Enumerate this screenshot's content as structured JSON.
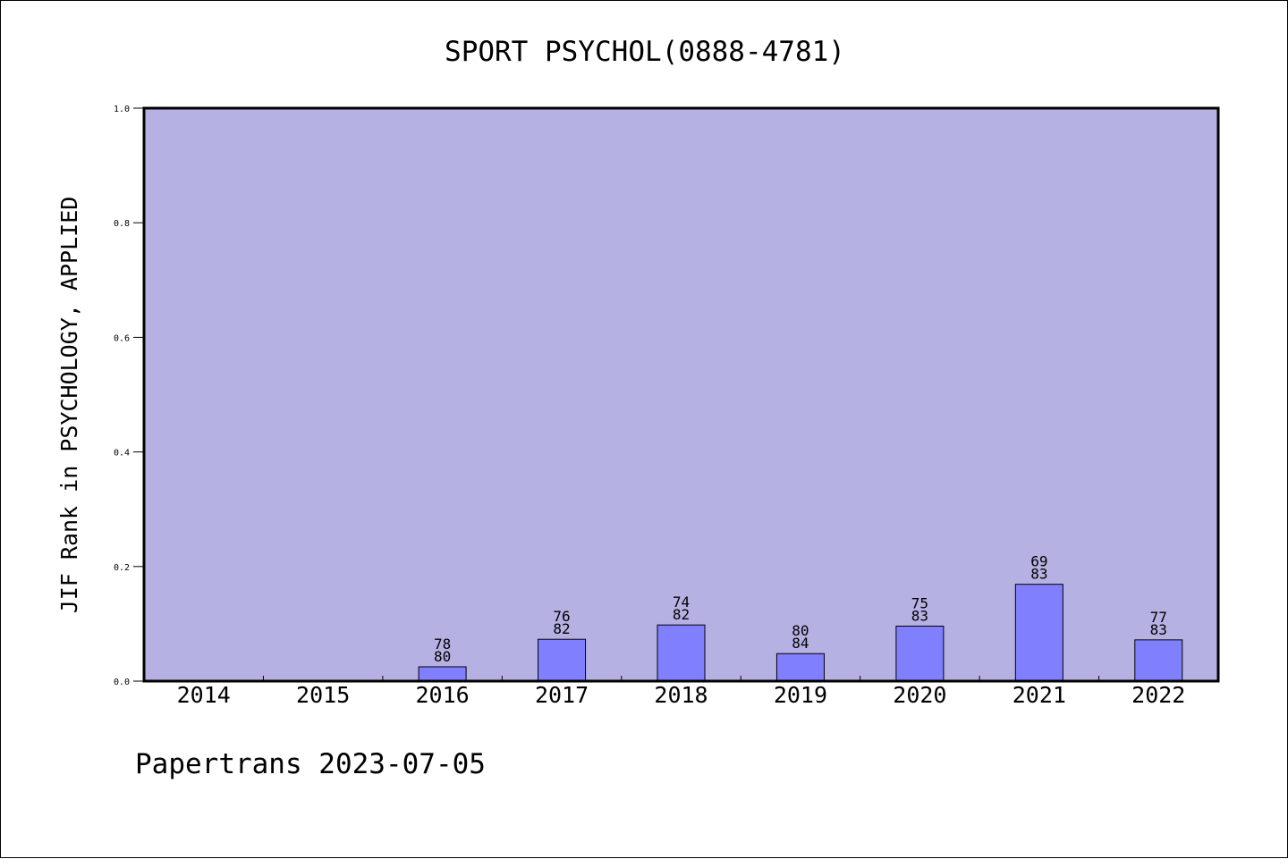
{
  "chart_data": {
    "type": "bar",
    "title": "SPORT PSYCHOL(0888-4781)",
    "xlabel": "",
    "ylabel": "JIF Rank in PSYCHOLOGY, APPLIED",
    "ylim": [
      0.0,
      1.0
    ],
    "yticks": [
      "0.0",
      "0.2",
      "0.4",
      "0.6",
      "0.8",
      "1.0"
    ],
    "ytick_values": [
      0.0,
      0.2,
      0.4,
      0.6,
      0.8,
      1.0
    ],
    "grid": false,
    "categories": [
      "2014",
      "2015",
      "2016",
      "2017",
      "2018",
      "2019",
      "2020",
      "2021",
      "2022"
    ],
    "values": [
      null,
      null,
      0.025,
      0.073,
      0.098,
      0.048,
      0.096,
      0.169,
      0.072
    ],
    "rank": [
      null,
      null,
      "78",
      "76",
      "74",
      "80",
      "75",
      "69",
      "77"
    ],
    "total": [
      null,
      null,
      "80",
      "82",
      "82",
      "84",
      "83",
      "83",
      "83"
    ],
    "plot_background": "#b6b1e3",
    "bar_color": "#8080ff"
  },
  "footer": {
    "text": "Papertrans 2023-07-05"
  }
}
